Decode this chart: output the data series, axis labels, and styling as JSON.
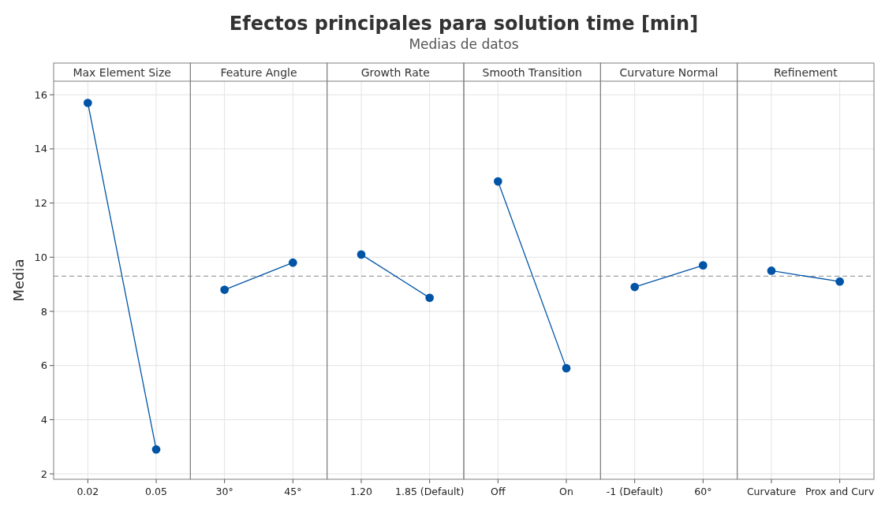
{
  "chart_data": {
    "type": "line",
    "title": "Efectos principales para solution time [min]",
    "subtitle": "Medias de datos",
    "ylabel": "Media",
    "annotations": [
      "Max Element Size",
      "Feature Angle",
      "Growth Rate",
      "Smooth Transition",
      "Curvature Normal",
      "Refinement"
    ],
    "categories": [
      "0.02",
      "0.05",
      "30°",
      "45°",
      "1.20",
      "1.85 (Default)",
      "Off",
      "On",
      "-1 (Default)",
      "60°",
      "Curvature",
      "Prox and Curv"
    ],
    "series": [
      {
        "color": "#0054a6",
        "values": [
          15.7,
          2.9,
          null,
          null,
          null,
          null,
          null,
          null,
          null,
          null,
          null,
          null
        ]
      },
      {
        "color": "#0054a6",
        "values": [
          null,
          null,
          8.8,
          9.8,
          null,
          null,
          null,
          null,
          null,
          null,
          null,
          null
        ]
      },
      {
        "color": "#0054a6",
        "values": [
          null,
          null,
          null,
          null,
          10.1,
          8.5,
          null,
          null,
          null,
          null,
          null,
          null
        ]
      },
      {
        "color": "#0054a6",
        "values": [
          null,
          null,
          null,
          null,
          null,
          null,
          12.8,
          5.9,
          null,
          null,
          null,
          null
        ]
      },
      {
        "color": "#0054a6",
        "values": [
          null,
          null,
          null,
          null,
          null,
          null,
          null,
          null,
          8.9,
          9.7,
          null,
          null
        ]
      },
      {
        "color": "#0054a6",
        "values": [
          null,
          null,
          null,
          null,
          null,
          null,
          null,
          null,
          null,
          null,
          9.5,
          9.1
        ]
      }
    ],
    "ylim": [
      1.8,
      16.5
    ],
    "yticks": [
      2,
      4,
      6,
      8,
      10,
      12,
      14,
      16
    ],
    "grid": true,
    "marker": "circle",
    "ref_lines": [
      {
        "axis": "y",
        "value": 9.3,
        "color": "#a0a0a0",
        "line_style": "dashed"
      }
    ]
  }
}
